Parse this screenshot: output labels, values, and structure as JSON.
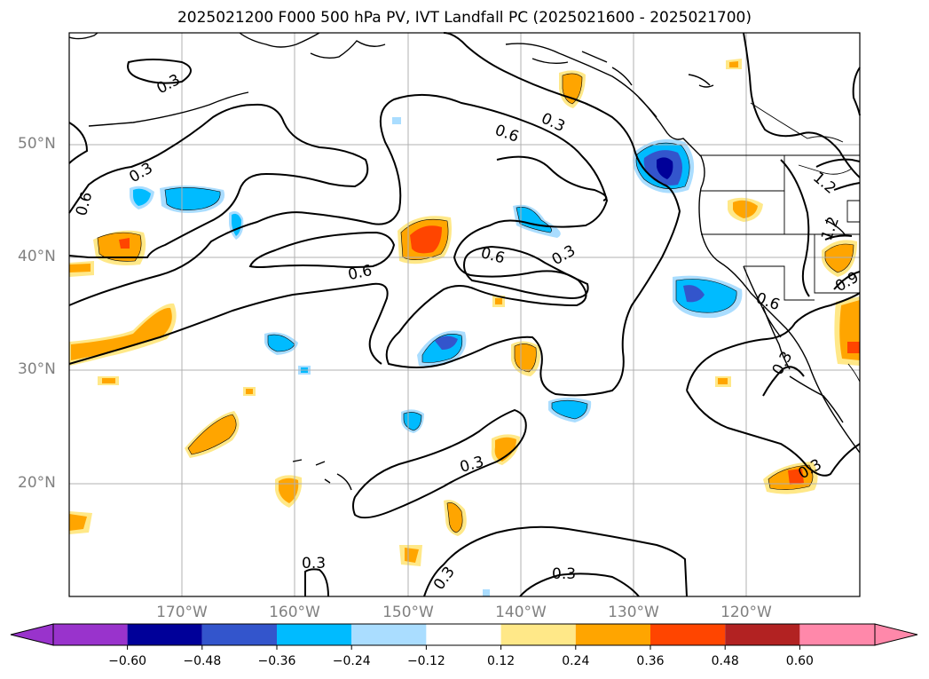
{
  "title": "2025021200 F000 500 hPa PV, IVT Landfall PC (2025021600 - 2025021700)",
  "lat_labels": [
    "50°N",
    "40°N",
    "30°N",
    "20°N"
  ],
  "lon_labels": [
    "170°W",
    "160°W",
    "150°W",
    "140°W",
    "130°W",
    "120°W"
  ],
  "contour_labels": [
    "0.3",
    "0.3",
    "0.6",
    "0.3",
    "0.6",
    "0.6",
    "0.3",
    "0.6",
    "0.3",
    "0.6",
    "0.3",
    "0.3",
    "0.3",
    "0.3",
    "0.3",
    "1.2",
    "1.2",
    "0.9"
  ],
  "colorbar": {
    "ticks": [
      "−0.60",
      "−0.48",
      "−0.36",
      "−0.24",
      "−0.12",
      "0.12",
      "0.24",
      "0.36",
      "0.48",
      "0.60"
    ],
    "colors": [
      "#9933cc",
      "#000099",
      "#3355cc",
      "#00bbff",
      "#aaddff",
      "#ffffff",
      "#ffe888",
      "#ffa500",
      "#ff4500",
      "#b22222",
      "#ff88aa"
    ]
  },
  "map": {
    "lat_range": [
      10,
      60
    ],
    "lon_range": [
      -180,
      -110
    ],
    "grid": true,
    "contour_variable": "500 hPa PV",
    "shading_variable": "IVT Landfall PC"
  }
}
